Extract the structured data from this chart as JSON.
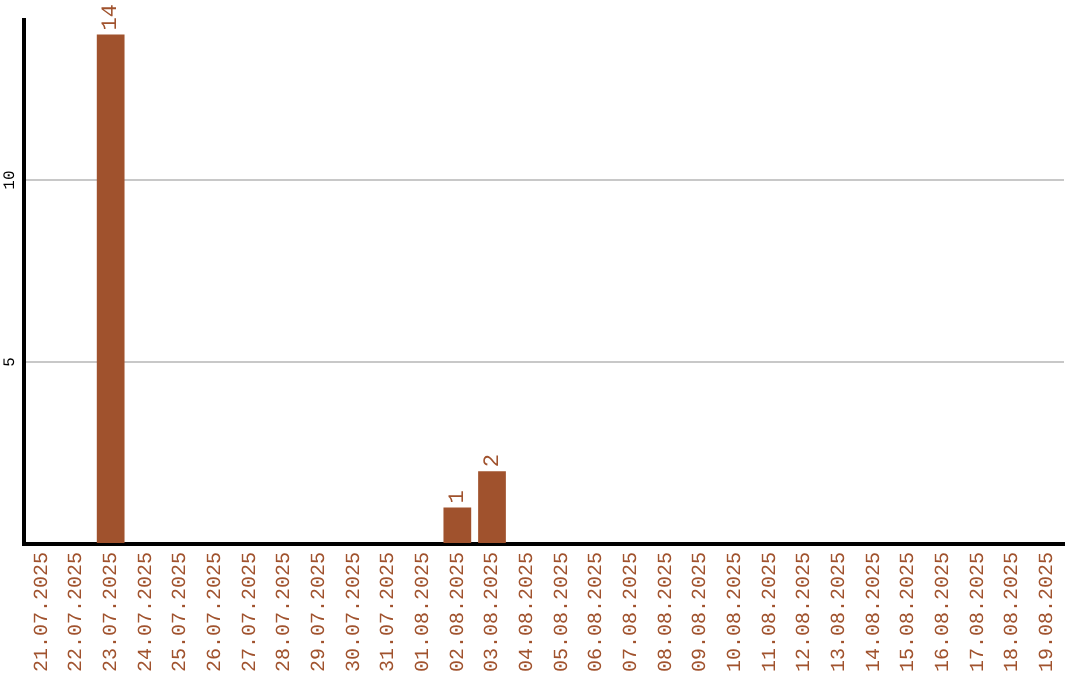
{
  "chart_data": {
    "type": "bar",
    "categories": [
      "21.07.2025",
      "22.07.2025",
      "23.07.2025",
      "24.07.2025",
      "25.07.2025",
      "26.07.2025",
      "27.07.2025",
      "28.07.2025",
      "29.07.2025",
      "30.07.2025",
      "31.07.2025",
      "01.08.2025",
      "02.08.2025",
      "03.08.2025",
      "04.08.2025",
      "05.08.2025",
      "06.08.2025",
      "07.08.2025",
      "08.08.2025",
      "09.08.2025",
      "10.08.2025",
      "11.08.2025",
      "12.08.2025",
      "13.08.2025",
      "14.08.2025",
      "15.08.2025",
      "16.08.2025",
      "17.08.2025",
      "18.08.2025",
      "19.08.2025"
    ],
    "values": [
      0,
      0,
      14,
      0,
      0,
      0,
      0,
      0,
      0,
      0,
      0,
      0,
      1,
      2,
      0,
      0,
      0,
      0,
      0,
      0,
      0,
      0,
      0,
      0,
      0,
      0,
      0,
      0,
      0,
      0
    ],
    "value_labels": [
      null,
      null,
      "14",
      null,
      null,
      null,
      null,
      null,
      null,
      null,
      null,
      null,
      "1",
      "2",
      null,
      null,
      null,
      null,
      null,
      null,
      null,
      null,
      null,
      null,
      null,
      null,
      null,
      null,
      null,
      null
    ],
    "color": "#a0522d",
    "ylim": [
      0,
      14.4
    ],
    "yticks": [
      {
        "value": 0,
        "label": null
      },
      5,
      10
    ],
    "grid": "y",
    "legend": false
  }
}
